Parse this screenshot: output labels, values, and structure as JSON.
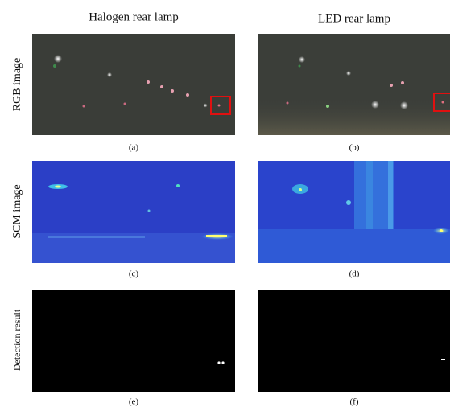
{
  "headers": [
    "Halogen rear lamp",
    "LED rear lamp"
  ],
  "row_labels": [
    "RGB image",
    "SCM image",
    "Detection result"
  ],
  "captions": [
    "(a)",
    "(b)",
    "(c)",
    "(d)",
    "(e)",
    "(f)"
  ]
}
